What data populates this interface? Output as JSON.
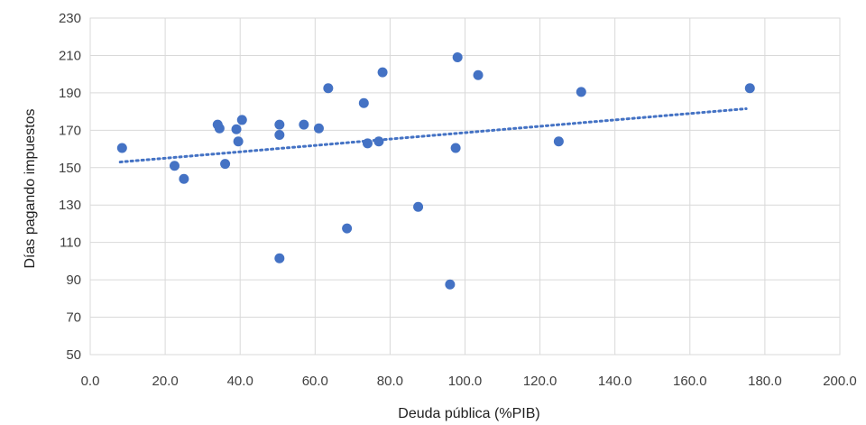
{
  "chart_data": {
    "type": "scatter",
    "title": "",
    "xlabel": "Deuda pública (%PIB)",
    "ylabel": "Días pagando impuestos",
    "xlim": [
      0,
      200
    ],
    "ylim": [
      50,
      230
    ],
    "xticks": [
      "0.0",
      "20.0",
      "40.0",
      "60.0",
      "80.0",
      "100.0",
      "120.0",
      "140.0",
      "160.0",
      "180.0",
      "200.0"
    ],
    "yticks": [
      "50",
      "70",
      "90",
      "110",
      "130",
      "150",
      "170",
      "190",
      "210",
      "230"
    ],
    "grid": true,
    "legend": "none",
    "marker_color": "#4472c4",
    "trendline": {
      "type": "linear",
      "style": "dotted",
      "x": [
        8,
        175
      ],
      "y": [
        153,
        181.5
      ]
    },
    "points": [
      {
        "x": 8.5,
        "y": 160.5
      },
      {
        "x": 22.5,
        "y": 151
      },
      {
        "x": 25,
        "y": 144
      },
      {
        "x": 34,
        "y": 173
      },
      {
        "x": 34.5,
        "y": 171
      },
      {
        "x": 36,
        "y": 152
      },
      {
        "x": 39,
        "y": 170.5
      },
      {
        "x": 39.5,
        "y": 164
      },
      {
        "x": 40.5,
        "y": 175.5
      },
      {
        "x": 50.5,
        "y": 101.5
      },
      {
        "x": 50.5,
        "y": 167.5
      },
      {
        "x": 50.5,
        "y": 173
      },
      {
        "x": 57,
        "y": 173
      },
      {
        "x": 61,
        "y": 171
      },
      {
        "x": 63.5,
        "y": 192.5
      },
      {
        "x": 68.5,
        "y": 117.5
      },
      {
        "x": 73,
        "y": 184.5
      },
      {
        "x": 74,
        "y": 163
      },
      {
        "x": 77,
        "y": 164
      },
      {
        "x": 78,
        "y": 201
      },
      {
        "x": 87.5,
        "y": 129
      },
      {
        "x": 96,
        "y": 87.5
      },
      {
        "x": 97.5,
        "y": 160.5
      },
      {
        "x": 98,
        "y": 209
      },
      {
        "x": 103.5,
        "y": 199.5
      },
      {
        "x": 125,
        "y": 164
      },
      {
        "x": 131,
        "y": 190.5
      },
      {
        "x": 176,
        "y": 192.5
      }
    ]
  }
}
